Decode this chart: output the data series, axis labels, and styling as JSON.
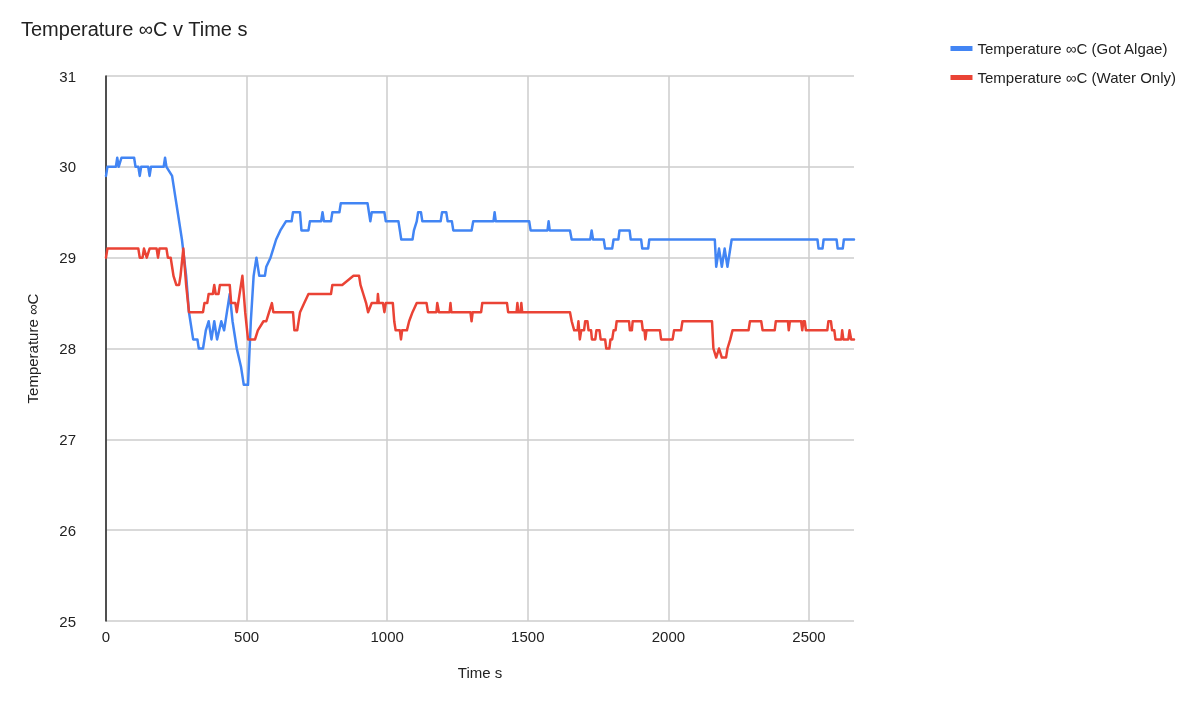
{
  "chart_data": {
    "type": "line",
    "title": "Temperature ∞C v Time s",
    "xlabel": "Time s",
    "ylabel": "Temperature ∞C",
    "xlim": [
      0,
      2660
    ],
    "xticks": [
      0,
      500,
      1000,
      1500,
      2000,
      2500
    ],
    "ylim": [
      25,
      31
    ],
    "yticks": [
      25,
      26,
      27,
      28,
      29,
      30,
      31
    ],
    "grid": true,
    "legend": "top right",
    "marker": "none",
    "line_style": "solid",
    "series": [
      {
        "name": "Temperature ∞C (Got Algae)",
        "color": "#4285f4",
        "x": [
          0,
          5,
          35,
          40,
          45,
          55,
          100,
          105,
          115,
          120,
          125,
          150,
          155,
          160,
          205,
          210,
          215,
          235,
          245,
          255,
          270,
          285,
          295,
          310,
          325,
          330,
          345,
          355,
          365,
          375,
          385,
          395,
          410,
          420,
          430,
          440,
          450,
          465,
          480,
          490,
          505,
          515,
          525,
          535,
          545,
          565,
          570,
          585,
          595,
          605,
          620,
          640,
          660,
          665,
          690,
          695,
          720,
          725,
          765,
          770,
          775,
          800,
          805,
          830,
          835,
          930,
          935,
          940,
          945,
          990,
          995,
          1040,
          1045,
          1050,
          1090,
          1095,
          1105,
          1110,
          1120,
          1125,
          1190,
          1195,
          1210,
          1215,
          1230,
          1235,
          1300,
          1306,
          1378,
          1382,
          1386,
          1505,
          1510,
          1570,
          1574,
          1578,
          1650,
          1656,
          1722,
          1727,
          1732,
          1770,
          1775,
          1800,
          1805,
          1822,
          1826,
          1862,
          1866,
          1903,
          1907,
          1928,
          1932,
          2165,
          2170,
          2180,
          2190,
          2200,
          2210,
          2225,
          2530,
          2534,
          2548,
          2552,
          2598,
          2602,
          2620,
          2624,
          2660
        ],
        "values": [
          29.9,
          30.0,
          30.0,
          30.1,
          30.0,
          30.1,
          30.1,
          30.0,
          30.0,
          29.9,
          30.0,
          30.0,
          29.9,
          30.0,
          30.0,
          30.1,
          30.0,
          29.9,
          29.7,
          29.5,
          29.2,
          28.8,
          28.4,
          28.1,
          28.1,
          28.0,
          28.0,
          28.2,
          28.3,
          28.1,
          28.3,
          28.1,
          28.3,
          28.2,
          28.4,
          28.6,
          28.3,
          28.0,
          27.8,
          27.6,
          27.6,
          28.3,
          28.8,
          29.0,
          28.8,
          28.8,
          28.9,
          29.0,
          29.1,
          29.2,
          29.3,
          29.4,
          29.4,
          29.5,
          29.5,
          29.3,
          29.3,
          29.4,
          29.4,
          29.5,
          29.4,
          29.4,
          29.5,
          29.5,
          29.6,
          29.6,
          29.5,
          29.4,
          29.5,
          29.5,
          29.4,
          29.4,
          29.3,
          29.2,
          29.2,
          29.3,
          29.4,
          29.5,
          29.5,
          29.4,
          29.4,
          29.5,
          29.5,
          29.4,
          29.4,
          29.3,
          29.3,
          29.4,
          29.4,
          29.5,
          29.4,
          29.4,
          29.3,
          29.3,
          29.4,
          29.3,
          29.3,
          29.2,
          29.2,
          29.3,
          29.2,
          29.2,
          29.1,
          29.1,
          29.2,
          29.2,
          29.3,
          29.3,
          29.2,
          29.2,
          29.1,
          29.1,
          29.2,
          29.2,
          28.9,
          29.1,
          28.9,
          29.1,
          28.9,
          29.2,
          29.2,
          29.1,
          29.1,
          29.2,
          29.2,
          29.1,
          29.1,
          29.2,
          29.2
        ]
      },
      {
        "name": "Temperature ∞C (Water Only)",
        "color": "#ea4335",
        "x": [
          0,
          5,
          115,
          120,
          130,
          135,
          145,
          155,
          180,
          185,
          190,
          215,
          220,
          230,
          235,
          240,
          250,
          260,
          265,
          275,
          285,
          295,
          345,
          350,
          360,
          365,
          380,
          385,
          390,
          400,
          405,
          440,
          445,
          460,
          465,
          470,
          485,
          495,
          505,
          530,
          540,
          560,
          570,
          580,
          590,
          595,
          665,
          670,
          680,
          690,
          705,
          720,
          780,
          800,
          805,
          840,
          880,
          900,
          905,
          915,
          925,
          932,
          945,
          965,
          967,
          970,
          985,
          990,
          995,
          1020,
          1025,
          1030,
          1045,
          1049,
          1053,
          1070,
          1078,
          1090,
          1105,
          1140,
          1145,
          1175,
          1178,
          1184,
          1222,
          1225,
          1228,
          1296,
          1300,
          1304,
          1334,
          1338,
          1426,
          1430,
          1460,
          1463,
          1466,
          1474,
          1477,
          1480,
          1650,
          1656,
          1665,
          1677,
          1680,
          1685,
          1690,
          1700,
          1704,
          1712,
          1716,
          1725,
          1728,
          1740,
          1744,
          1755,
          1759,
          1775,
          1779,
          1790,
          1794,
          1800,
          1805,
          1812,
          1816,
          1860,
          1863,
          1870,
          1873,
          1905,
          1909,
          1915,
          1918,
          1922,
          1970,
          1974,
          2015,
          2020,
          2045,
          2050,
          2155,
          2160,
          2170,
          2180,
          2190,
          2205,
          2210,
          2220,
          2228,
          2285,
          2290,
          2330,
          2335,
          2378,
          2382,
          2425,
          2428,
          2432,
          2472,
          2476,
          2480,
          2485,
          2489,
          2565,
          2569,
          2578,
          2582,
          2590,
          2594,
          2615,
          2618,
          2622,
          2640,
          2644,
          2650,
          2660
        ],
        "values": [
          29.0,
          29.1,
          29.1,
          29.0,
          29.0,
          29.1,
          29.0,
          29.1,
          29.1,
          29.0,
          29.1,
          29.1,
          29.0,
          29.0,
          28.9,
          28.8,
          28.7,
          28.7,
          28.8,
          29.1,
          28.7,
          28.4,
          28.4,
          28.5,
          28.5,
          28.6,
          28.6,
          28.7,
          28.6,
          28.6,
          28.7,
          28.7,
          28.5,
          28.5,
          28.4,
          28.5,
          28.8,
          28.4,
          28.1,
          28.1,
          28.2,
          28.3,
          28.3,
          28.4,
          28.5,
          28.4,
          28.4,
          28.2,
          28.2,
          28.4,
          28.5,
          28.6,
          28.6,
          28.6,
          28.7,
          28.7,
          28.8,
          28.8,
          28.7,
          28.6,
          28.5,
          28.4,
          28.5,
          28.5,
          28.6,
          28.5,
          28.5,
          28.4,
          28.5,
          28.5,
          28.3,
          28.2,
          28.2,
          28.1,
          28.2,
          28.2,
          28.3,
          28.4,
          28.5,
          28.5,
          28.4,
          28.4,
          28.5,
          28.4,
          28.4,
          28.5,
          28.4,
          28.4,
          28.3,
          28.4,
          28.4,
          28.5,
          28.5,
          28.4,
          28.4,
          28.5,
          28.4,
          28.4,
          28.5,
          28.4,
          28.4,
          28.3,
          28.2,
          28.2,
          28.3,
          28.1,
          28.2,
          28.2,
          28.3,
          28.3,
          28.2,
          28.2,
          28.1,
          28.1,
          28.2,
          28.2,
          28.1,
          28.1,
          28.0,
          28.0,
          28.1,
          28.1,
          28.2,
          28.2,
          28.3,
          28.3,
          28.2,
          28.2,
          28.3,
          28.3,
          28.2,
          28.2,
          28.1,
          28.2,
          28.2,
          28.1,
          28.1,
          28.2,
          28.2,
          28.3,
          28.3,
          28.0,
          27.9,
          28.0,
          27.9,
          27.9,
          28.0,
          28.1,
          28.2,
          28.2,
          28.3,
          28.3,
          28.2,
          28.2,
          28.3,
          28.3,
          28.2,
          28.3,
          28.3,
          28.2,
          28.3,
          28.3,
          28.2,
          28.2,
          28.3,
          28.3,
          28.2,
          28.2,
          28.1,
          28.1,
          28.2,
          28.1,
          28.1,
          28.2,
          28.1,
          28.1
        ]
      }
    ]
  }
}
